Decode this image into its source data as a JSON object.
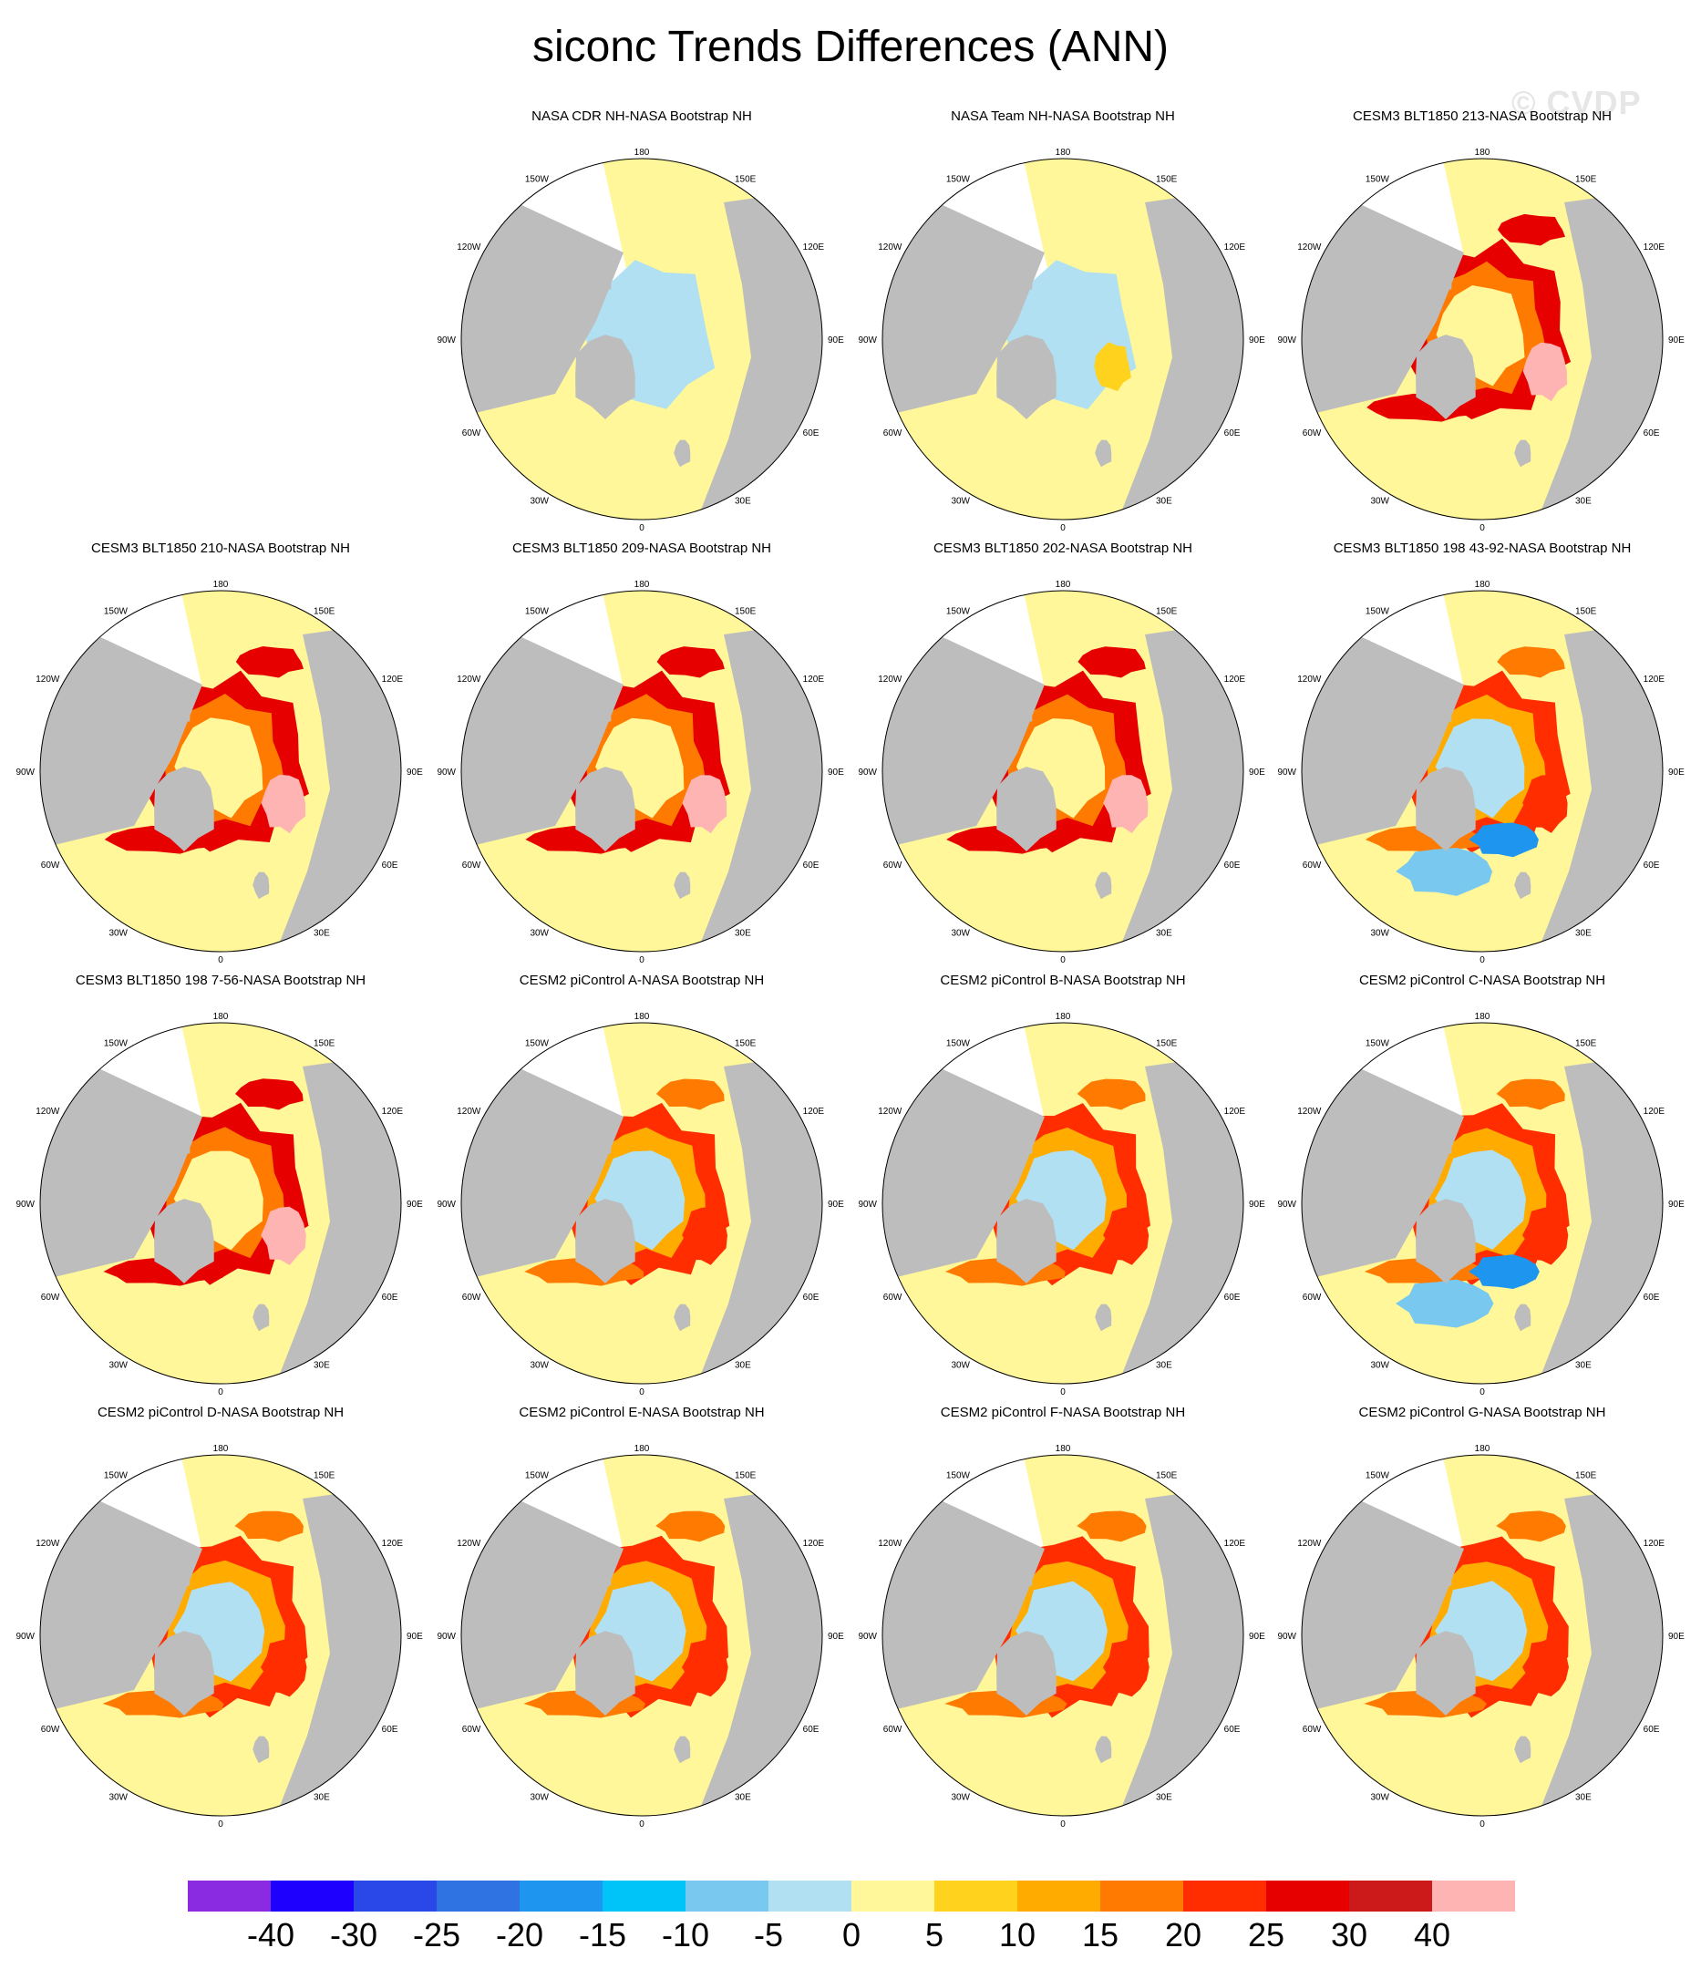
{
  "title": "siconc Trends Differences (ANN)",
  "watermark": "© CVDP",
  "longitude_labels": {
    "top": "180",
    "bottom": "0",
    "left": [
      "150W",
      "120W",
      "90W",
      "60W",
      "30W"
    ],
    "right": [
      "150E",
      "120E",
      "90E",
      "60E",
      "30E"
    ]
  },
  "colors": {
    "land": "#bdbdbd",
    "missing": "#ffffff",
    "map_outline": "#000000"
  },
  "panels": [
    {
      "id": "p1",
      "title": "NASA CDR NH-NASA Bootstrap NH",
      "style": "obs_cdr"
    },
    {
      "id": "p2",
      "title": "NASA Team NH-NASA Bootstrap NH",
      "style": "obs_team"
    },
    {
      "id": "p3",
      "title": "CESM3 BLT1850 213-NASA Bootstrap NH",
      "style": "model_high"
    },
    {
      "id": "p4",
      "title": "CESM3 BLT1850 210-NASA Bootstrap NH",
      "style": "model_high"
    },
    {
      "id": "p5",
      "title": "CESM3 BLT1850 209-NASA Bootstrap NH",
      "style": "model_high"
    },
    {
      "id": "p6",
      "title": "CESM3 BLT1850 202-NASA Bootstrap NH",
      "style": "model_high"
    },
    {
      "id": "p7",
      "title": "CESM3 BLT1850 198 43-92-NASA Bootstrap NH",
      "style": "model_mixed"
    },
    {
      "id": "p8",
      "title": "CESM3 BLT1850 198 7-56-NASA Bootstrap NH",
      "style": "model_high"
    },
    {
      "id": "p9",
      "title": "CESM2 piControl A-NASA Bootstrap NH",
      "style": "model_mid"
    },
    {
      "id": "p10",
      "title": "CESM2 piControl B-NASA Bootstrap NH",
      "style": "model_mid"
    },
    {
      "id": "p11",
      "title": "CESM2 piControl C-NASA Bootstrap NH",
      "style": "model_mixed"
    },
    {
      "id": "p12",
      "title": "CESM2 piControl D-NASA Bootstrap NH",
      "style": "model_mid"
    },
    {
      "id": "p13",
      "title": "CESM2 piControl E-NASA Bootstrap NH",
      "style": "model_mid"
    },
    {
      "id": "p14",
      "title": "CESM2 piControl F-NASA Bootstrap NH",
      "style": "model_mid"
    },
    {
      "id": "p15",
      "title": "CESM2 piControl G-NASA Bootstrap NH",
      "style": "model_mid"
    }
  ],
  "colorbar": {
    "labels": [
      "-40",
      "-30",
      "-25",
      "-20",
      "-15",
      "-10",
      "-5",
      "0",
      "5",
      "10",
      "15",
      "20",
      "25",
      "30",
      "40"
    ],
    "colors": [
      "#8a2be2",
      "#1e00ff",
      "#2a48e8",
      "#2f73e3",
      "#1e96f0",
      "#00c3f8",
      "#78c8f0",
      "#b0e0f2",
      "#fff799",
      "#ffd21e",
      "#ffab00",
      "#ff7a00",
      "#ff2d00",
      "#e60000",
      "#cc1a1a",
      "#ffb4b4"
    ]
  }
}
